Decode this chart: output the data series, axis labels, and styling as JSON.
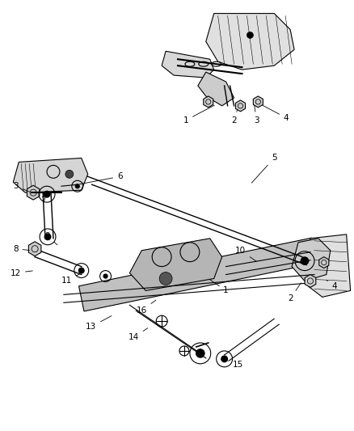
{
  "title": "",
  "background_color": "#ffffff",
  "line_color": "#000000",
  "label_color": "#000000",
  "fig_width": 4.38,
  "fig_height": 5.33,
  "dpi": 100
}
